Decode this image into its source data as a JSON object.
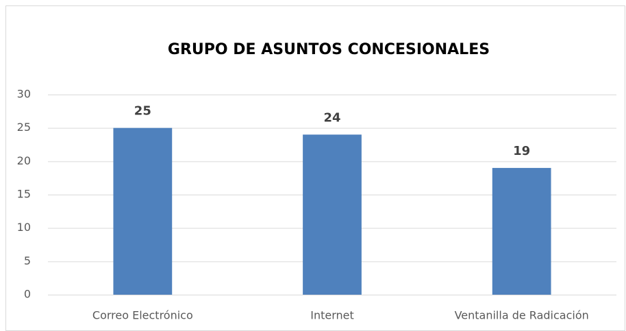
{
  "chart_data": {
    "type": "bar",
    "title": "GRUPO DE ASUNTOS CONCESIONALES",
    "categories": [
      "Correo Electrónico",
      "Internet",
      "Ventanilla de Radicación"
    ],
    "values": [
      25,
      24,
      19
    ],
    "color": "#4f81bd",
    "ylim": [
      0,
      30
    ],
    "yticks": [
      0,
      5,
      10,
      15,
      20,
      25,
      30
    ],
    "grid": true
  }
}
